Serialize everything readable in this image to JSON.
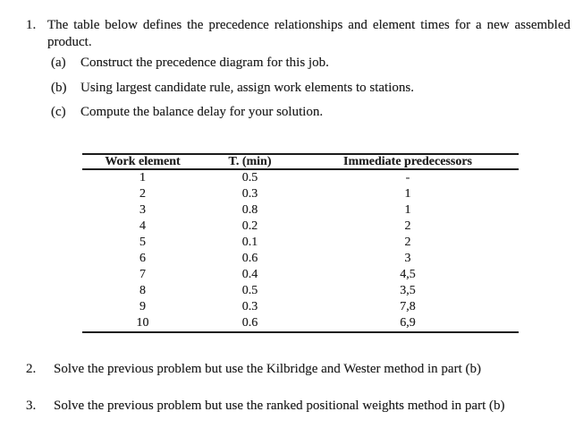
{
  "document": {
    "colors": {
      "background": "#ffffff",
      "text": "#232323",
      "table_rule": "#1b1b1b"
    },
    "problems": [
      {
        "number": "1.",
        "text": "The table below defines the precedence relationships and element times for a new assembled product.",
        "parts": [
          {
            "label": "(a)",
            "text": "Construct the precedence diagram for this job."
          },
          {
            "label": "(b)",
            "text": "Using largest candidate rule, assign work elements to stations."
          },
          {
            "label": "(c)",
            "text": "Compute the balance delay for your solution."
          }
        ]
      },
      {
        "number": "2.",
        "text": "Solve the previous problem but use the Kilbridge and Wester method in part (b)"
      },
      {
        "number": "3.",
        "text": "Solve the previous problem but use the ranked positional weights method in part (b)"
      }
    ],
    "table": {
      "headers": [
        "Work element",
        "T. (min)",
        "Immediate predecessors"
      ],
      "rows": [
        [
          "1",
          "0.5",
          "-"
        ],
        [
          "2",
          "0.3",
          "1"
        ],
        [
          "3",
          "0.8",
          "1"
        ],
        [
          "4",
          "0.2",
          "2"
        ],
        [
          "5",
          "0.1",
          "2"
        ],
        [
          "6",
          "0.6",
          "3"
        ],
        [
          "7",
          "0.4",
          "4,5"
        ],
        [
          "8",
          "0.5",
          "3,5"
        ],
        [
          "9",
          "0.3",
          "7,8"
        ],
        [
          "10",
          "0.6",
          "6,9"
        ]
      ]
    }
  }
}
